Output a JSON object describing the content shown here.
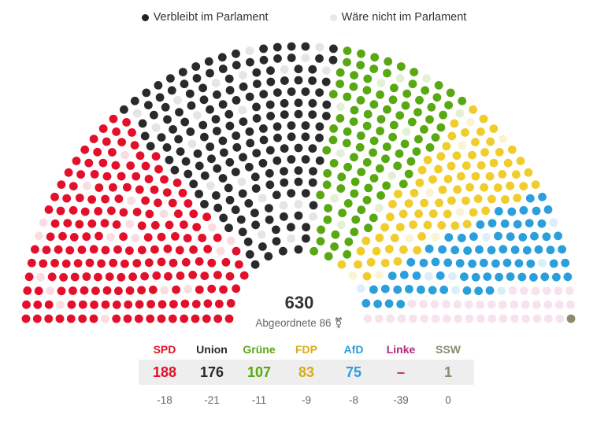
{
  "legend": {
    "remain_label": "Verbleibt im Parlament",
    "remain_color": "#222222",
    "removed_label": "Wäre nicht im Parlament",
    "removed_color": "#e8e8e8"
  },
  "total": {
    "value": "630",
    "label": "Abgeordnete 86 ⚧"
  },
  "chart_data": {
    "type": "parliament",
    "total_seats": 630,
    "parties": [
      {
        "name": "SPD",
        "seats_display": "188",
        "seats": 188,
        "change": "-18",
        "removed": 18,
        "color": "#e3102b",
        "faded_color": "#f9dde1"
      },
      {
        "name": "Union",
        "seats_display": "176",
        "seats": 176,
        "change": "-21",
        "removed": 21,
        "color": "#2a2a2a",
        "faded_color": "#e5e5e5"
      },
      {
        "name": "Grüne",
        "seats_display": "107",
        "seats": 107,
        "change": "-11",
        "removed": 11,
        "color": "#58a812",
        "faded_color": "#e4f0d6"
      },
      {
        "name": "FDP",
        "seats_display": "83",
        "seats": 83,
        "change": "-9",
        "removed": 9,
        "color": "#f0cc2c",
        "faded_color": "#fbf4d3"
      },
      {
        "name": "AfD",
        "seats_display": "75",
        "seats": 75,
        "change": "-8",
        "removed": 8,
        "color": "#2b9fdc",
        "faded_color": "#dbeef9"
      },
      {
        "name": "Linke",
        "seats_display": "–",
        "seats": 0,
        "change": "-39",
        "removed": 39,
        "color": "#b6267f",
        "faded_color": "#f6e3ee"
      },
      {
        "name": "SSW",
        "seats_display": "1",
        "seats": 1,
        "change": "0",
        "removed": 0,
        "color": "#8c8a70",
        "faded_color": "#eceadf"
      }
    ]
  }
}
